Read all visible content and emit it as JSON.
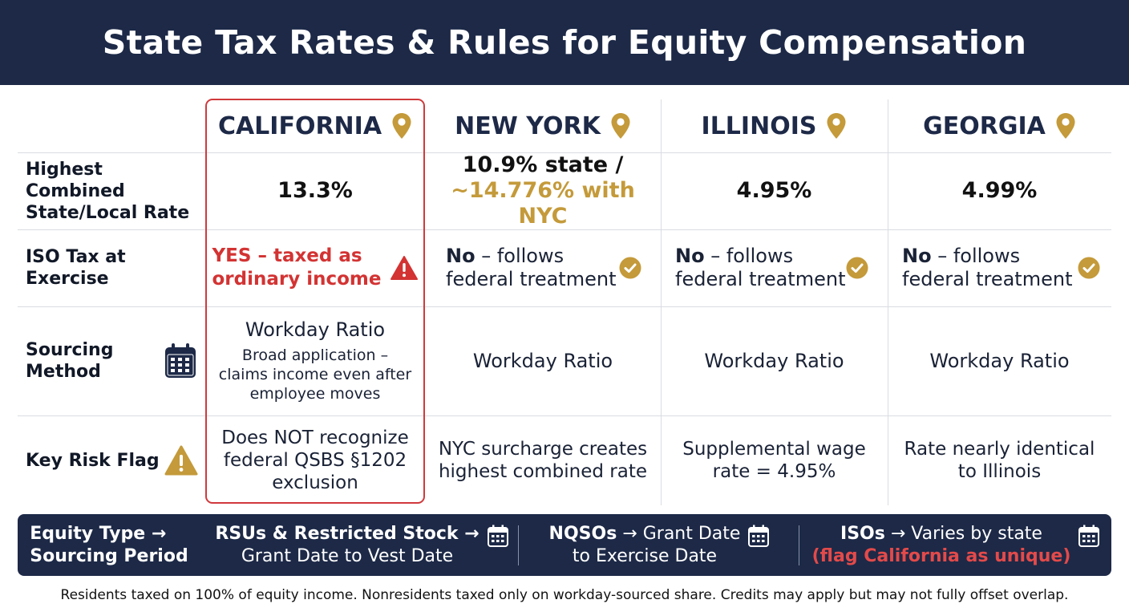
{
  "title": "State Tax Rates & Rules for Equity Compensation",
  "columns": [
    {
      "name": "CALIFORNIA",
      "icon": "map-pin-icon"
    },
    {
      "name": "NEW YORK",
      "icon": "map-pin-icon"
    },
    {
      "name": "ILLINOIS",
      "icon": "map-pin-icon"
    },
    {
      "name": "GEORGIA",
      "icon": "map-pin-icon"
    }
  ],
  "rows": {
    "rate": {
      "label_line1": "Highest Combined",
      "label_line2": "State/Local Rate",
      "california": "13.3%",
      "new_york_state": "10.9% state /",
      "new_york_nyc": "~14.776% with NYC",
      "illinois": "4.95%",
      "georgia": "4.99%"
    },
    "iso": {
      "label_line1": "ISO Tax at",
      "label_line2": "Exercise",
      "california_line1": "YES – taxed as",
      "california_line2": "ordinary income",
      "california_icon": "warning-triangle-icon",
      "no_word": "No",
      "follows": " – follows",
      "federal": "federal treatment",
      "check_icon": "check-circle-icon"
    },
    "sourcing": {
      "label_line1": "Sourcing",
      "label_line2": "Method",
      "label_icon": "calendar-icon",
      "california_title": "Workday Ratio",
      "california_note_line1": "Broad application –",
      "california_note_line2": "claims income even after",
      "california_note_line3": "employee moves",
      "new_york": "Workday Ratio",
      "illinois": "Workday Ratio",
      "georgia": "Workday Ratio"
    },
    "risk": {
      "label": "Key Risk Flag",
      "label_icon": "warning-triangle-icon",
      "california_line1": "Does NOT recognize",
      "california_line2": "federal QSBS §1202",
      "california_line3": "exclusion",
      "new_york_line1": "NYC surcharge creates",
      "new_york_line2": "highest combined rate",
      "illinois_line1": "Supplemental wage",
      "illinois_line2": "rate = 4.95%",
      "georgia_line1": "Rate nearly identical",
      "georgia_line2": "to Illinois"
    }
  },
  "sourcing_bar": {
    "heading_line1": "Equity Type →",
    "heading_line2": "Sourcing Period",
    "rsu_bold": "RSUs & Restricted Stock →",
    "rsu_line2": "Grant Date to Vest Date",
    "nqso_bold": "NQSOs",
    "nqso_rest": " → Grant Date",
    "nqso_line2": "to Exercise Date",
    "iso_bold": "ISOs",
    "iso_rest": " → Varies by state",
    "iso_flag": "(flag California as unique)",
    "icon": "calendar-icon"
  },
  "footer": "Residents taxed on 100% of equity income. Nonresidents taxed only on workday-sourced share. Credits may apply but may not fully offset overlap.",
  "colors": {
    "navy": "#1d2947",
    "gold": "#c49a3a",
    "red": "#d33333",
    "grid": "#d9dce2"
  }
}
